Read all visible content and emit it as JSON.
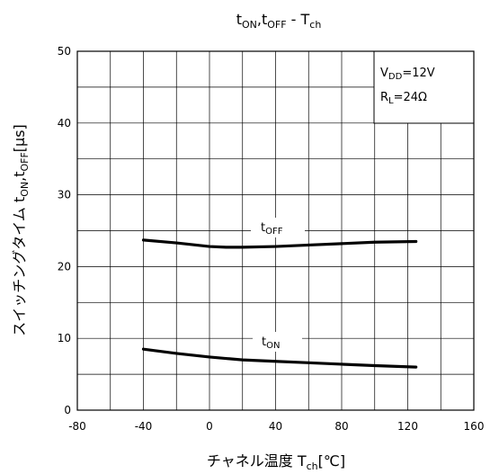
{
  "chart_data": {
    "type": "line",
    "title": {
      "main": "t",
      "sub1": "ON",
      "sep1": ",t",
      "sub2": "OFF",
      "sep2": " - T",
      "sub3": "ch"
    },
    "xlabel": {
      "main": "チャネル温度 T",
      "sub": "ch",
      "unit": "[℃]"
    },
    "ylabel": {
      "main": "スイッチングタイム t",
      "sub1": "ON",
      "sep": ",t",
      "sub2": "OFF",
      "unit": "[μs]"
    },
    "xlim": [
      -80,
      160
    ],
    "ylim": [
      0,
      50
    ],
    "x_ticks": [
      -80,
      -40,
      0,
      40,
      80,
      120,
      160
    ],
    "y_ticks": [
      0,
      10,
      20,
      30,
      40,
      50
    ],
    "x_minor_step": 20,
    "y_minor_step": 5,
    "grid": true,
    "legend": {
      "placement": "top-right",
      "lines": [
        {
          "main": "V",
          "sub": "DD",
          "rest": "=12V"
        },
        {
          "main": "R",
          "sub": "L",
          "rest": "=24Ω"
        }
      ]
    },
    "series": [
      {
        "name": {
          "main": "t",
          "sub": "OFF"
        },
        "x": [
          -40,
          -20,
          0,
          10,
          20,
          40,
          60,
          80,
          100,
          125
        ],
        "y": [
          23.7,
          23.3,
          22.8,
          22.7,
          22.7,
          22.8,
          23.0,
          23.2,
          23.4,
          23.5
        ]
      },
      {
        "name": {
          "main": "t",
          "sub": "ON"
        },
        "x": [
          -40,
          -20,
          0,
          10,
          20,
          40,
          60,
          80,
          100,
          125
        ],
        "y": [
          8.5,
          7.9,
          7.4,
          7.2,
          7.0,
          6.8,
          6.6,
          6.4,
          6.2,
          6.0
        ]
      }
    ]
  }
}
